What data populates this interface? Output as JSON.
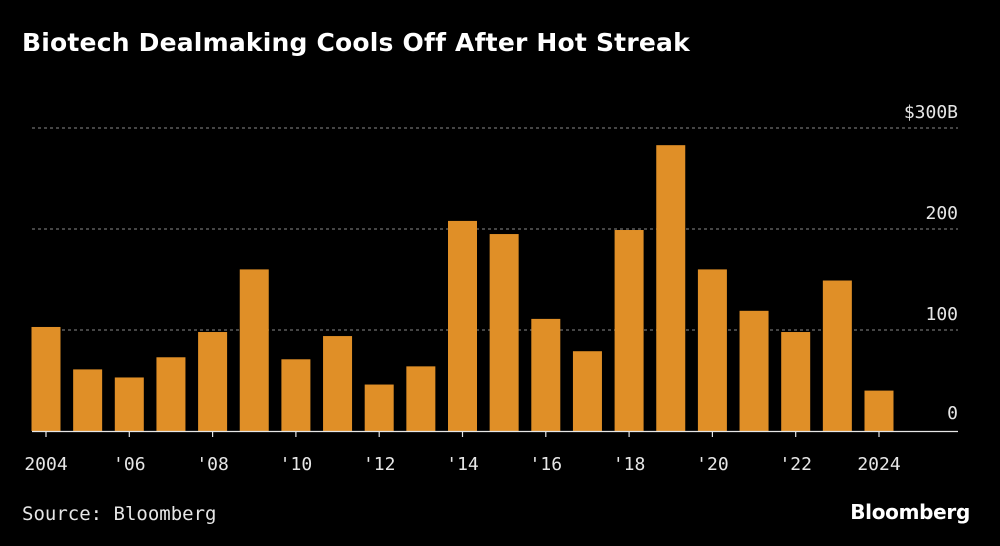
{
  "header": {
    "title": "Biotech Dealmaking Cools Off After Hot Streak"
  },
  "footer": {
    "source": "Source: Bloomberg",
    "brand": "Bloomberg"
  },
  "colors": {
    "background": "#000000",
    "bar": "#E08F27",
    "grid": "#8a8a8a",
    "text": "#e6e6e6"
  },
  "chart_data": {
    "type": "bar",
    "title": "Biotech Dealmaking Cools Off After Hot Streak",
    "xlabel": "",
    "ylabel": "",
    "unit": "$B",
    "categories": [
      "2004",
      "2005",
      "2006",
      "2007",
      "2008",
      "2009",
      "2010",
      "2011",
      "2012",
      "2013",
      "2014",
      "2015",
      "2016",
      "2017",
      "2018",
      "2019",
      "2020",
      "2021",
      "2022",
      "2023",
      "2024"
    ],
    "values": [
      103,
      61,
      53,
      73,
      98,
      160,
      71,
      94,
      46,
      64,
      208,
      195,
      111,
      79,
      199,
      283,
      160,
      119,
      98,
      149,
      40
    ],
    "ylim": [
      0,
      300
    ],
    "yticks": [
      {
        "value": 0,
        "label": "0"
      },
      {
        "value": 100,
        "label": "100"
      },
      {
        "value": 200,
        "label": "200"
      },
      {
        "value": 300,
        "label": "$300B"
      }
    ],
    "xticks": [
      {
        "category": "2004",
        "label": "2004"
      },
      {
        "category": "2006",
        "label": "'06"
      },
      {
        "category": "2008",
        "label": "'08"
      },
      {
        "category": "2010",
        "label": "'10"
      },
      {
        "category": "2012",
        "label": "'12"
      },
      {
        "category": "2014",
        "label": "'14"
      },
      {
        "category": "2016",
        "label": "'16"
      },
      {
        "category": "2018",
        "label": "'18"
      },
      {
        "category": "2020",
        "label": "'20"
      },
      {
        "category": "2022",
        "label": "'22"
      },
      {
        "category": "2024",
        "label": "2024"
      }
    ],
    "grid": true,
    "legend": "none"
  }
}
